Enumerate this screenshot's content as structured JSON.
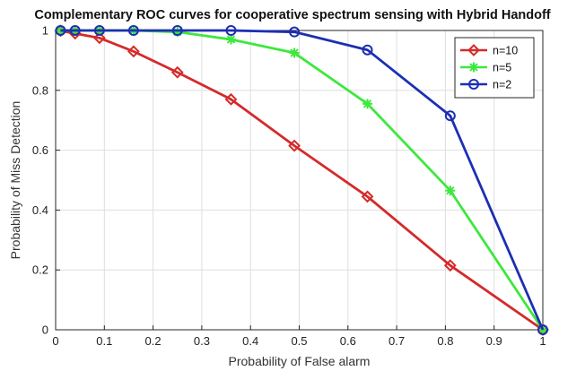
{
  "chart_data": {
    "type": "line",
    "title": "Complementary ROC curves for cooperative spectrum sensing with Hybrid Handoff",
    "xlabel": "Probability of False alarm",
    "ylabel": "Probability of Miss Detection",
    "xlim": [
      0,
      1
    ],
    "ylim": [
      0,
      1
    ],
    "xticks": [
      "0",
      "0.1",
      "0.2",
      "0.3",
      "0.4",
      "0.5",
      "0.6",
      "0.7",
      "0.8",
      "0.9",
      "1"
    ],
    "yticks": [
      "0",
      "0.2",
      "0.4",
      "0.6",
      "0.8",
      "1"
    ],
    "grid": true,
    "legend_position": "top-right",
    "series": [
      {
        "name": "n=10",
        "color": "#d42a2a",
        "marker": "diamond",
        "x": [
          0.01,
          0.04,
          0.09,
          0.16,
          0.25,
          0.36,
          0.49,
          0.64,
          0.81,
          1.0
        ],
        "y": [
          0.999,
          0.99,
          0.975,
          0.93,
          0.86,
          0.77,
          0.615,
          0.445,
          0.215,
          0.0
        ]
      },
      {
        "name": "n=5",
        "color": "#3de83d",
        "marker": "asterisk",
        "x": [
          0.01,
          0.04,
          0.09,
          0.16,
          0.25,
          0.36,
          0.49,
          0.64,
          0.81,
          1.0
        ],
        "y": [
          1.0,
          1.0,
          1.0,
          1.0,
          0.995,
          0.97,
          0.925,
          0.755,
          0.465,
          0.0
        ]
      },
      {
        "name": "n=2",
        "color": "#1c2fb3",
        "marker": "circle",
        "x": [
          0.01,
          0.04,
          0.09,
          0.16,
          0.25,
          0.36,
          0.49,
          0.64,
          0.81,
          1.0
        ],
        "y": [
          1.0,
          1.0,
          1.0,
          1.0,
          1.0,
          1.0,
          0.995,
          0.935,
          0.715,
          0.0
        ]
      }
    ]
  }
}
